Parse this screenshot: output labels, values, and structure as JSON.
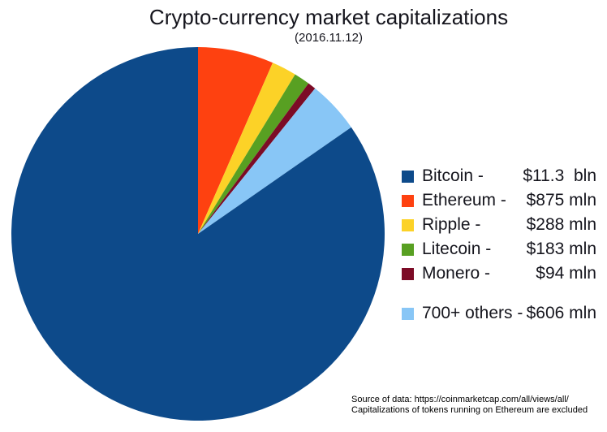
{
  "title": "Crypto-currency market capitalizations",
  "subtitle": "(2016.11.12)",
  "source_note": {
    "line1": "Source of data: https://coinmarketcap.com/all/views/all/",
    "line2": "Capitalizations of tokens running on Ethereum are excluded"
  },
  "chart_data": {
    "type": "pie",
    "title": "Crypto-currency market capitalizations",
    "subtitle": "(2016.11.12)",
    "unit": "million USD",
    "legend_position": "right",
    "grid": false,
    "clockwise": true,
    "start_angle_deg": 0,
    "draw_order": [
      1,
      2,
      3,
      4,
      5,
      0
    ],
    "legend_gap_before_index": 5,
    "slices": [
      {
        "name": "Bitcoin",
        "label": "Bitcoin -",
        "value_mln": 11300,
        "display_value": "$11.3  bln",
        "color": "#0d4a8a"
      },
      {
        "name": "Ethereum",
        "label": "Ethereum -",
        "value_mln": 875,
        "display_value": "$875 mln",
        "color": "#fe4110"
      },
      {
        "name": "Ripple",
        "label": "Ripple -",
        "value_mln": 288,
        "display_value": "$288 mln",
        "color": "#fcd227"
      },
      {
        "name": "Litecoin",
        "label": "Litecoin -",
        "value_mln": 183,
        "display_value": "$183 mln",
        "color": "#58a022"
      },
      {
        "name": "Monero",
        "label": "Monero -",
        "value_mln": 94,
        "display_value": "$94 mln",
        "color": "#7c0b26"
      },
      {
        "name": "700+ others",
        "label": "700+ others -",
        "value_mln": 606,
        "display_value": "$606 mln",
        "color": "#88c6f6"
      }
    ]
  }
}
